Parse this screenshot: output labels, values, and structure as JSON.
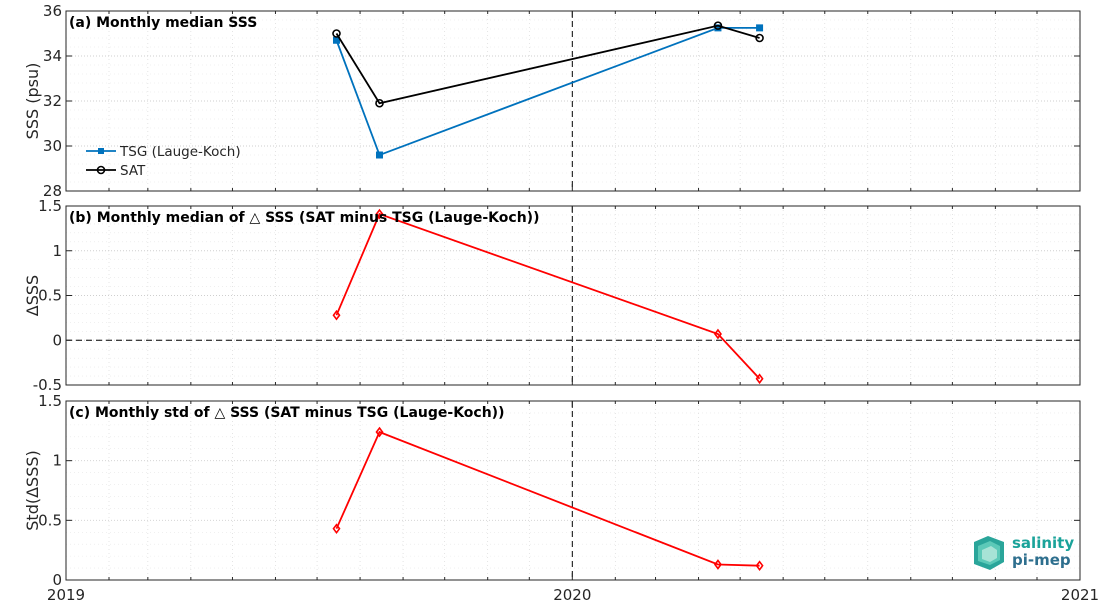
{
  "chart_data": [
    {
      "type": "line",
      "title": "(a) Monthly median SSS",
      "ylabel": "SSS (psu)",
      "xlim": [
        "2019-01-01",
        "2021-01-01"
      ],
      "ylim": [
        28,
        36
      ],
      "yticks": [
        "28",
        "30",
        "32",
        "34",
        "36"
      ],
      "grid": true,
      "legend_position": "lower-left",
      "series": [
        {
          "name": "TSG (Lauge-Koch)",
          "color": "#0072BD",
          "marker": "square",
          "x": [
            "2019-07-15",
            "2019-08-15",
            "2020-04-15",
            "2020-05-15"
          ],
          "values": [
            34.7,
            29.6,
            35.25,
            35.25
          ]
        },
        {
          "name": "SAT",
          "color": "#000000",
          "marker": "circle",
          "x": [
            "2019-07-15",
            "2019-08-15",
            "2020-04-15",
            "2020-05-15"
          ],
          "values": [
            35.0,
            31.9,
            35.35,
            34.8
          ]
        }
      ]
    },
    {
      "type": "line",
      "title": "(b) Monthly median of △ SSS (SAT minus TSG (Lauge-Koch))",
      "ylabel": "ΔSSS",
      "xlim": [
        "2019-01-01",
        "2021-01-01"
      ],
      "ylim": [
        -0.5,
        1.5
      ],
      "yticks": [
        "-0.5",
        "0",
        "0.5",
        "1",
        "1.5"
      ],
      "grid": true,
      "zero_line": true,
      "series": [
        {
          "color": "#FF0000",
          "marker": "diamond",
          "x": [
            "2019-07-15",
            "2019-08-15",
            "2020-04-15",
            "2020-05-15"
          ],
          "values": [
            0.28,
            1.41,
            0.07,
            -0.43
          ]
        }
      ]
    },
    {
      "type": "line",
      "title": "(c) Monthly std of △ SSS (SAT minus TSG (Lauge-Koch))",
      "ylabel": "Std(ΔSSS)",
      "xlim": [
        "2019-01-01",
        "2021-01-01"
      ],
      "ylim": [
        0,
        1.5
      ],
      "yticks": [
        "0",
        "0.5",
        "1",
        "1.5"
      ],
      "xticks": [
        "2019",
        "2020",
        "2021"
      ],
      "grid": true,
      "series": [
        {
          "color": "#FF0000",
          "marker": "diamond",
          "x": [
            "2019-07-15",
            "2019-08-15",
            "2020-04-15",
            "2020-05-15"
          ],
          "values": [
            0.43,
            1.24,
            0.13,
            0.12
          ]
        }
      ]
    }
  ],
  "logo": {
    "line1": "salinity",
    "line2": "pi-mep"
  }
}
